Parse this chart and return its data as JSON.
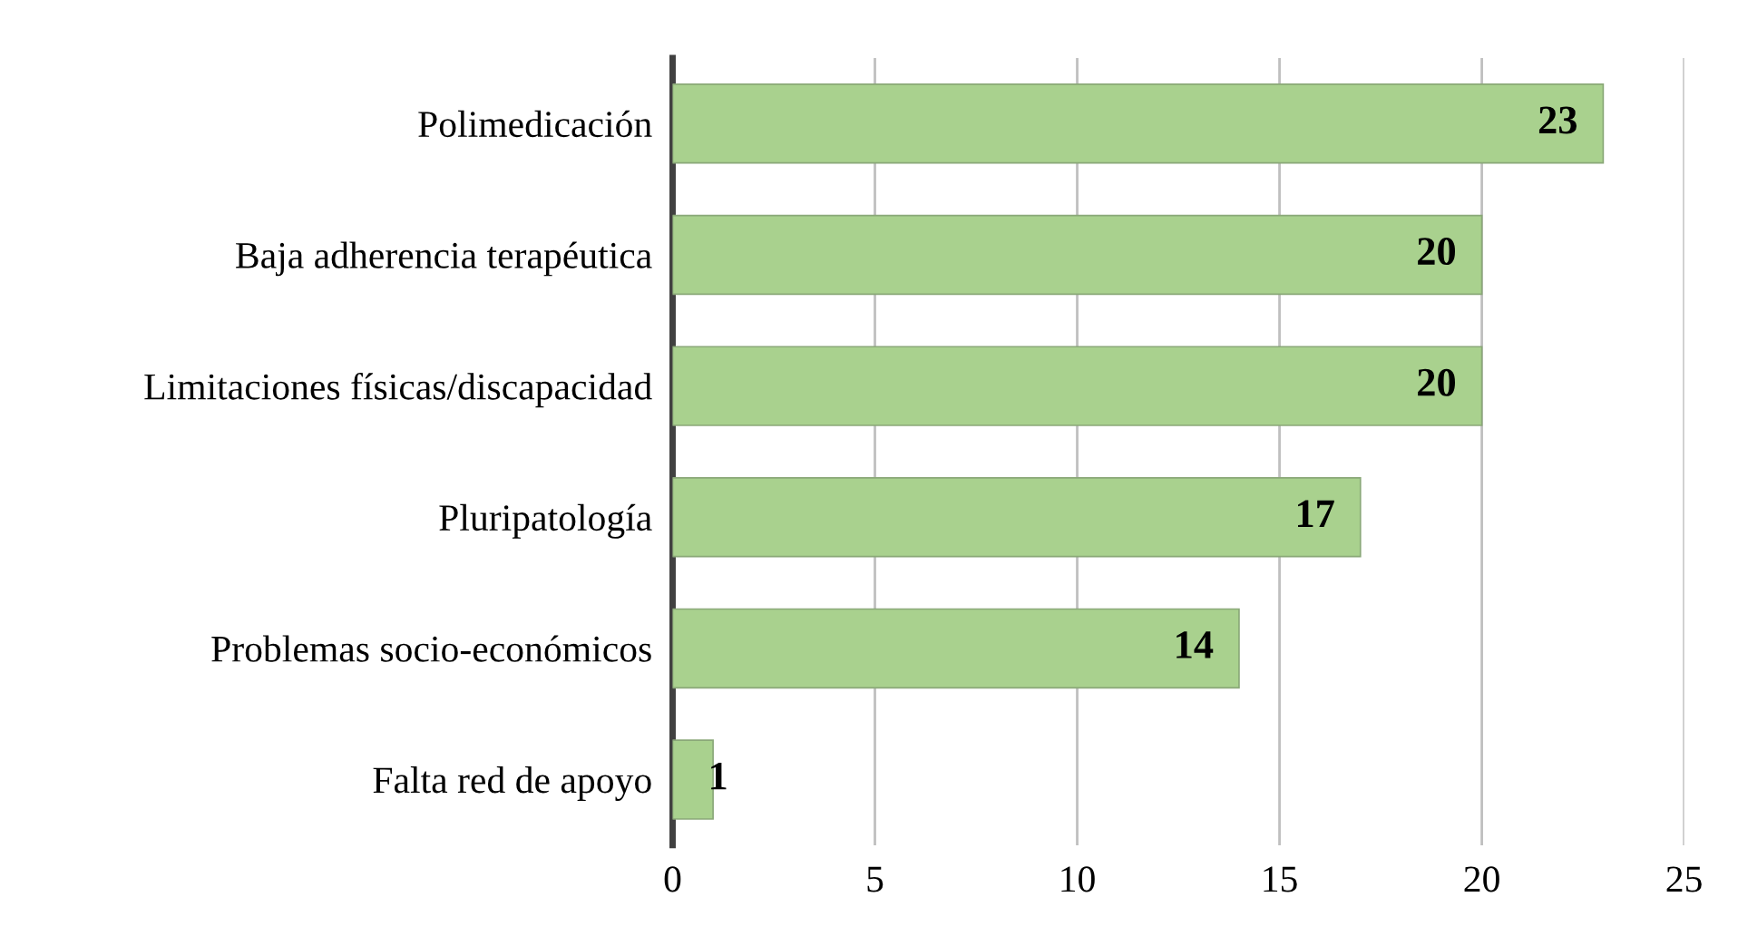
{
  "chart_data": {
    "type": "bar",
    "orientation": "horizontal",
    "categories": [
      "Polimedicación",
      "Baja adherencia terapéutica",
      "Limitaciones físicas/discapacidad",
      "Pluripatología",
      "Problemas socio-económicos",
      "Falta red de apoyo"
    ],
    "values": [
      23,
      20,
      20,
      17,
      14,
      1
    ],
    "color": "#a9d18e",
    "xlim": [
      0,
      25
    ],
    "xticks": [
      0,
      5,
      10,
      15,
      20,
      25
    ],
    "grid": "x",
    "data_labels": true
  }
}
